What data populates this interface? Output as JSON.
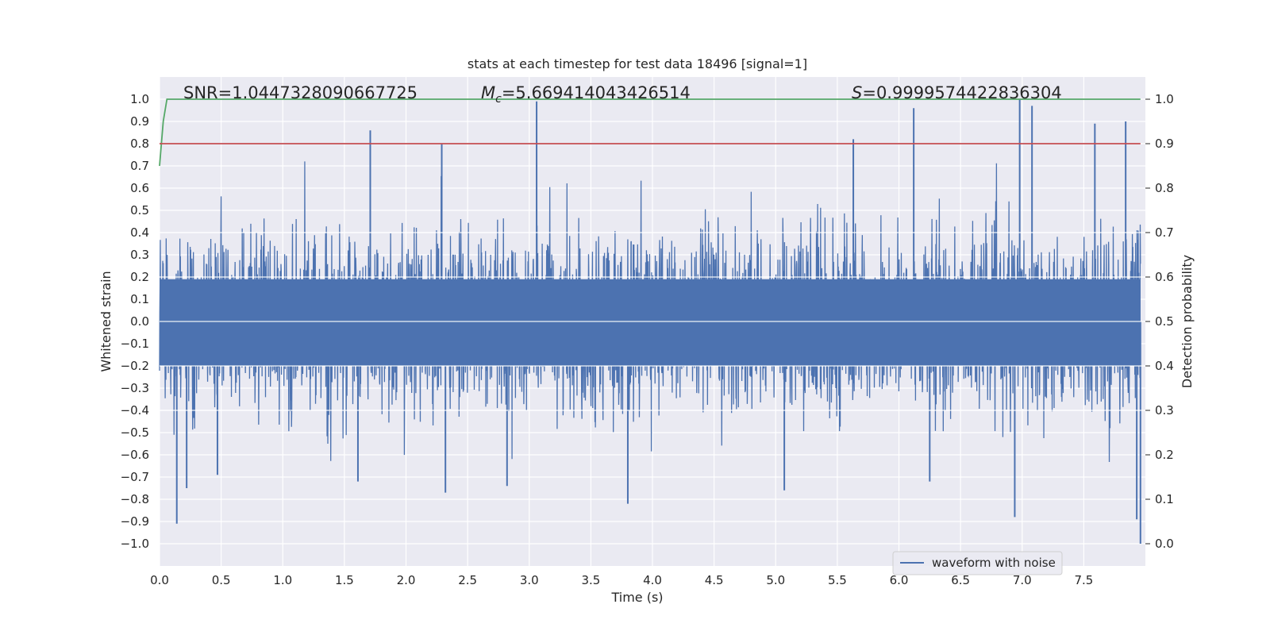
{
  "chart_data": {
    "type": "line",
    "title": "stats at each timestep for test data 18496 [signal=1]",
    "xlabel": "Time (s)",
    "ylabel": "Whitened strain",
    "y2label": "Detection probability",
    "xlim": [
      0.0,
      8.0
    ],
    "ylim": [
      -1.1,
      1.1
    ],
    "y2lim": [
      -0.05,
      1.05
    ],
    "xticks": [
      "0.0",
      "0.5",
      "1.0",
      "1.5",
      "2.0",
      "2.5",
      "3.0",
      "3.5",
      "4.0",
      "4.5",
      "5.0",
      "5.5",
      "6.0",
      "6.5",
      "7.0",
      "7.5"
    ],
    "xtick_values": [
      0.0,
      0.5,
      1.0,
      1.5,
      2.0,
      2.5,
      3.0,
      3.5,
      4.0,
      4.5,
      5.0,
      5.5,
      6.0,
      6.5,
      7.0,
      7.5
    ],
    "yticks": [
      "1.0",
      "0.9",
      "0.8",
      "0.7",
      "0.6",
      "0.5",
      "0.4",
      "0.3",
      "0.2",
      "0.1",
      "0.0",
      "−0.1",
      "−0.2",
      "−0.3",
      "−0.4",
      "−0.5",
      "−0.6",
      "−0.7",
      "−0.8",
      "−0.9",
      "−1.0"
    ],
    "ytick_values": [
      1.0,
      0.9,
      0.8,
      0.7,
      0.6,
      0.5,
      0.4,
      0.3,
      0.2,
      0.1,
      0.0,
      -0.1,
      -0.2,
      -0.3,
      -0.4,
      -0.5,
      -0.6,
      -0.7,
      -0.8,
      -0.9,
      -1.0
    ],
    "y2ticks": [
      "1.0",
      "0.9",
      "0.8",
      "0.7",
      "0.6",
      "0.5",
      "0.4",
      "0.3",
      "0.2",
      "0.1",
      "0.0"
    ],
    "y2tick_values": [
      1.0,
      0.9,
      0.8,
      0.7,
      0.6,
      0.5,
      0.4,
      0.3,
      0.2,
      0.1,
      0.0
    ],
    "annotations": {
      "snr": "SNR=1.0447328090667725",
      "mc_symbol": "M",
      "mc_subscript": "c",
      "mc_value": "=5.669414043426514",
      "s_symbol": "S",
      "s_value": "=0.9999574422836304"
    },
    "legend": {
      "label": "waveform with noise",
      "position": "lower-right"
    },
    "series": [
      {
        "name": "waveform with noise",
        "axis": "left",
        "color": "#4c72b0",
        "kind": "dense-noise",
        "t_range": [
          0.0,
          7.96
        ],
        "samples": 4000,
        "typical_amplitude": 0.3,
        "peaks": [
          {
            "t": 0.14,
            "y": -0.91
          },
          {
            "t": 0.22,
            "y": -0.75
          },
          {
            "t": 0.47,
            "y": -0.69
          },
          {
            "t": 1.71,
            "y": 0.86
          },
          {
            "t": 1.61,
            "y": -0.72
          },
          {
            "t": 2.29,
            "y": 0.8
          },
          {
            "t": 2.32,
            "y": -0.77
          },
          {
            "t": 3.06,
            "y": 0.99
          },
          {
            "t": 2.82,
            "y": -0.74
          },
          {
            "t": 3.8,
            "y": -0.82
          },
          {
            "t": 5.07,
            "y": -0.76
          },
          {
            "t": 5.63,
            "y": 0.82
          },
          {
            "t": 6.12,
            "y": 0.96
          },
          {
            "t": 6.25,
            "y": -0.72
          },
          {
            "t": 6.94,
            "y": -0.88
          },
          {
            "t": 6.98,
            "y": 1.0
          },
          {
            "t": 7.08,
            "y": 0.97
          },
          {
            "t": 7.59,
            "y": 0.89
          },
          {
            "t": 7.84,
            "y": 0.9
          },
          {
            "t": 7.93,
            "y": -0.89
          },
          {
            "t": 7.96,
            "y": -1.0
          }
        ]
      },
      {
        "name": "detection probability",
        "axis": "right",
        "color": "#55a868",
        "x": [
          0.0,
          0.03,
          0.06,
          0.1,
          7.96
        ],
        "y": [
          0.85,
          0.95,
          1.0,
          1.0,
          1.0
        ]
      },
      {
        "name": "threshold",
        "axis": "right",
        "color": "#c44e52",
        "x": [
          0.0,
          7.96
        ],
        "y": [
          0.9,
          0.9
        ]
      }
    ],
    "grid": true,
    "background": "#eaeaf2"
  }
}
